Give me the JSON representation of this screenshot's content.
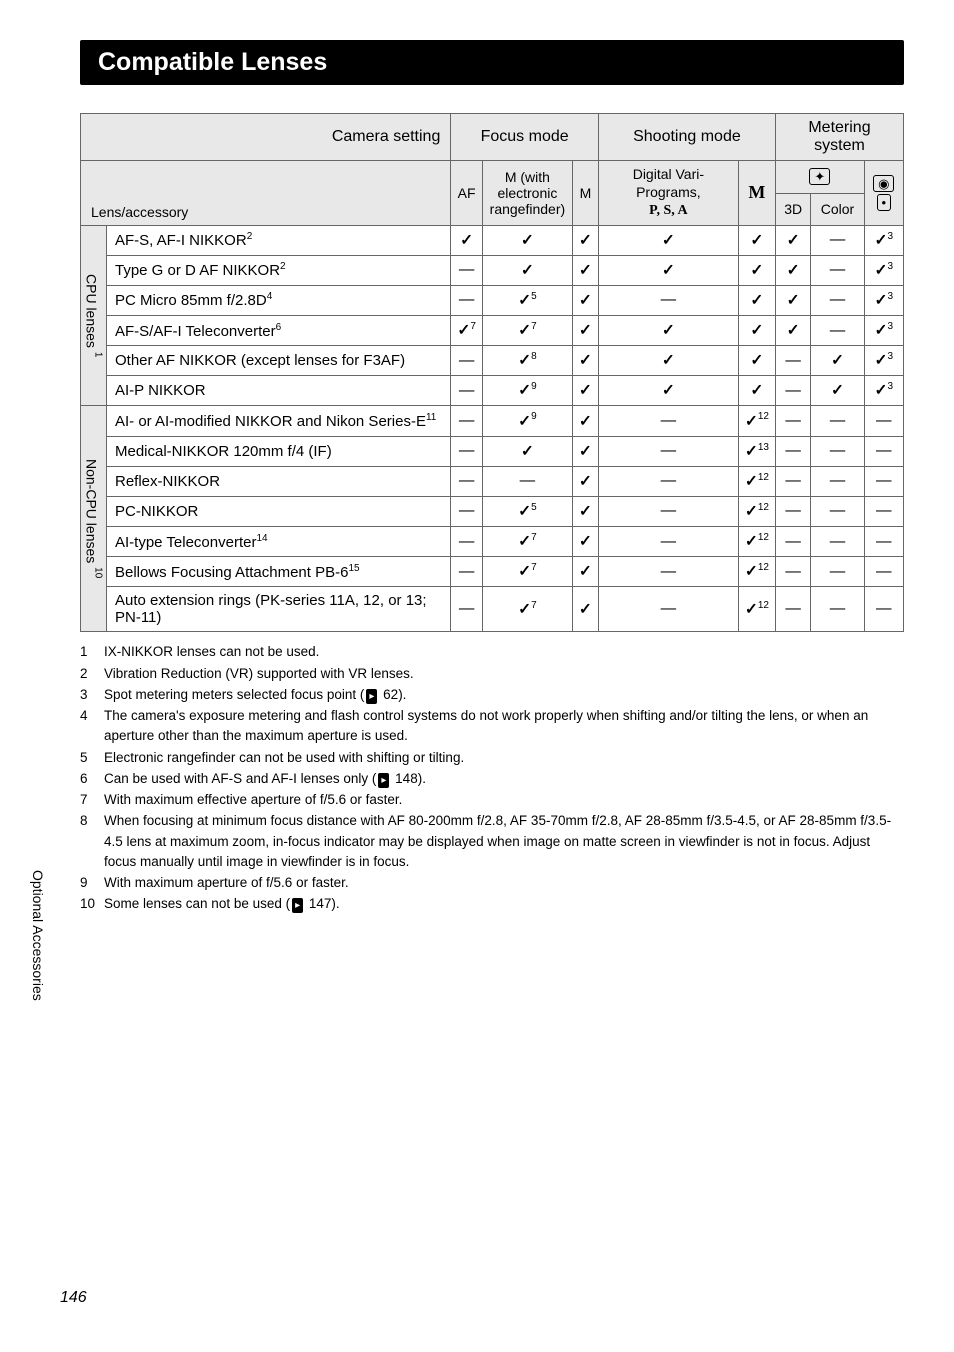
{
  "title": "Compatible Lenses",
  "headers": {
    "camera_setting": "Camera setting",
    "focus_mode": "Focus mode",
    "shooting_mode": "Shooting mode",
    "metering_system": "Metering system",
    "lens_accessory": "Lens/accessory",
    "af": "AF",
    "m_rangefinder": "M (with electronic rangefinder)",
    "m": "M",
    "digital_vari": "Digital Vari-Programs,",
    "psa": "P, S, A",
    "m_bold": "M",
    "threeD": "3D",
    "color": "Color"
  },
  "groups": {
    "cpu": "CPU lenses",
    "cpu_sup": "1",
    "noncpu": "Non-CPU lenses",
    "noncpu_sup": "10"
  },
  "rows": [
    {
      "g": "cpu",
      "name": "AF-S, AF-I NIKKOR",
      "sup": "2",
      "cells": [
        {
          "v": "ck"
        },
        {
          "v": "ck"
        },
        {
          "v": "ck"
        },
        {
          "v": "ck"
        },
        {
          "v": "ck"
        },
        {
          "v": "ck"
        },
        {
          "v": "dash"
        },
        {
          "v": "ck",
          "s": "3"
        }
      ]
    },
    {
      "g": "cpu",
      "name": "Type G or D AF NIKKOR",
      "sup": "2",
      "cells": [
        {
          "v": "dash"
        },
        {
          "v": "ck"
        },
        {
          "v": "ck"
        },
        {
          "v": "ck"
        },
        {
          "v": "ck"
        },
        {
          "v": "ck"
        },
        {
          "v": "dash"
        },
        {
          "v": "ck",
          "s": "3"
        }
      ]
    },
    {
      "g": "cpu",
      "name": "PC Micro 85mm f/2.8D",
      "sup": "4",
      "cells": [
        {
          "v": "dash"
        },
        {
          "v": "ck",
          "s": "5"
        },
        {
          "v": "ck"
        },
        {
          "v": "dash"
        },
        {
          "v": "ck"
        },
        {
          "v": "ck"
        },
        {
          "v": "dash"
        },
        {
          "v": "ck",
          "s": "3"
        }
      ]
    },
    {
      "g": "cpu",
      "name": "AF-S/AF-I Teleconverter",
      "sup": "6",
      "cells": [
        {
          "v": "ck",
          "s": "7"
        },
        {
          "v": "ck",
          "s": "7"
        },
        {
          "v": "ck"
        },
        {
          "v": "ck"
        },
        {
          "v": "ck"
        },
        {
          "v": "ck"
        },
        {
          "v": "dash"
        },
        {
          "v": "ck",
          "s": "3"
        }
      ]
    },
    {
      "g": "cpu",
      "name": "Other AF NIKKOR (except lenses for F3AF)",
      "sup": "",
      "cells": [
        {
          "v": "dash"
        },
        {
          "v": "ck",
          "s": "8"
        },
        {
          "v": "ck"
        },
        {
          "v": "ck"
        },
        {
          "v": "ck"
        },
        {
          "v": "dash"
        },
        {
          "v": "ck"
        },
        {
          "v": "ck",
          "s": "3"
        }
      ]
    },
    {
      "g": "cpu",
      "name": "AI-P NIKKOR",
      "sup": "",
      "cells": [
        {
          "v": "dash"
        },
        {
          "v": "ck",
          "s": "9"
        },
        {
          "v": "ck"
        },
        {
          "v": "ck"
        },
        {
          "v": "ck"
        },
        {
          "v": "dash"
        },
        {
          "v": "ck"
        },
        {
          "v": "ck",
          "s": "3"
        }
      ]
    },
    {
      "g": "noncpu",
      "name": "AI- or AI-modified NIKKOR and Nikon Series-E",
      "sup": "11",
      "cells": [
        {
          "v": "dash"
        },
        {
          "v": "ck",
          "s": "9"
        },
        {
          "v": "ck"
        },
        {
          "v": "dash"
        },
        {
          "v": "ck",
          "s": "12"
        },
        {
          "v": "dash"
        },
        {
          "v": "dash"
        },
        {
          "v": "dash"
        }
      ]
    },
    {
      "g": "noncpu",
      "name": "Medical-NIKKOR 120mm f/4 (IF)",
      "sup": "",
      "cells": [
        {
          "v": "dash"
        },
        {
          "v": "ck"
        },
        {
          "v": "ck"
        },
        {
          "v": "dash"
        },
        {
          "v": "ck",
          "s": "13"
        },
        {
          "v": "dash"
        },
        {
          "v": "dash"
        },
        {
          "v": "dash"
        }
      ]
    },
    {
      "g": "noncpu",
      "name": "Reflex-NIKKOR",
      "sup": "",
      "cells": [
        {
          "v": "dash"
        },
        {
          "v": "dash"
        },
        {
          "v": "ck"
        },
        {
          "v": "dash"
        },
        {
          "v": "ck",
          "s": "12"
        },
        {
          "v": "dash"
        },
        {
          "v": "dash"
        },
        {
          "v": "dash"
        }
      ]
    },
    {
      "g": "noncpu",
      "name": "PC-NIKKOR",
      "sup": "",
      "cells": [
        {
          "v": "dash"
        },
        {
          "v": "ck",
          "s": "5"
        },
        {
          "v": "ck"
        },
        {
          "v": "dash"
        },
        {
          "v": "ck",
          "s": "12"
        },
        {
          "v": "dash"
        },
        {
          "v": "dash"
        },
        {
          "v": "dash"
        }
      ]
    },
    {
      "g": "noncpu",
      "name": "AI-type Teleconverter",
      "sup": "14",
      "cells": [
        {
          "v": "dash"
        },
        {
          "v": "ck",
          "s": "7"
        },
        {
          "v": "ck"
        },
        {
          "v": "dash"
        },
        {
          "v": "ck",
          "s": "12"
        },
        {
          "v": "dash"
        },
        {
          "v": "dash"
        },
        {
          "v": "dash"
        }
      ]
    },
    {
      "g": "noncpu",
      "name": "Bellows Focusing Attachment PB-6",
      "sup": "15",
      "cells": [
        {
          "v": "dash"
        },
        {
          "v": "ck",
          "s": "7"
        },
        {
          "v": "ck"
        },
        {
          "v": "dash"
        },
        {
          "v": "ck",
          "s": "12"
        },
        {
          "v": "dash"
        },
        {
          "v": "dash"
        },
        {
          "v": "dash"
        }
      ]
    },
    {
      "g": "noncpu",
      "name": "Auto extension rings (PK-series 11A, 12, or 13; PN-11)",
      "sup": "",
      "cells": [
        {
          "v": "dash"
        },
        {
          "v": "ck",
          "s": "7"
        },
        {
          "v": "ck"
        },
        {
          "v": "dash"
        },
        {
          "v": "ck",
          "s": "12"
        },
        {
          "v": "dash"
        },
        {
          "v": "dash"
        },
        {
          "v": "dash"
        }
      ]
    }
  ],
  "footnotes": [
    {
      "n": "1",
      "t": "IX-NIKKOR lenses can not be used."
    },
    {
      "n": "2",
      "t": "Vibration Reduction (VR) supported with VR lenses."
    },
    {
      "n": "3",
      "t": "Spot metering meters selected focus point (",
      "ref": "62).",
      "icon": true
    },
    {
      "n": "4",
      "t": "The camera's exposure metering and flash control systems do not work properly when shifting and/or tilting the lens, or when an aperture other than the maximum aperture is used."
    },
    {
      "n": "5",
      "t": "Electronic rangefinder can not be used with shifting or tilting."
    },
    {
      "n": "6",
      "t": "Can be used with AF-S and AF-I lenses only (",
      "ref": "148).",
      "icon": true
    },
    {
      "n": "7",
      "t": "With maximum effective aperture of f/5.6 or faster."
    },
    {
      "n": "8",
      "t": "When focusing at minimum focus distance with AF 80-200mm f/2.8, AF 35-70mm f/2.8, AF 28-85mm f/3.5-4.5, or AF 28-85mm f/3.5-4.5 <NEW> lens at maximum zoom, in-focus indicator may be displayed when image on matte screen in viewfinder is not in focus. Adjust focus manually until image in viewfinder is in focus."
    },
    {
      "n": "9",
      "t": "With maximum aperture of f/5.6 or faster."
    },
    {
      "n": "10",
      "t": "Some lenses can not be used (",
      "ref": "147).",
      "icon": true
    }
  ],
  "side_label": "Optional Accessories",
  "page_number": "146"
}
